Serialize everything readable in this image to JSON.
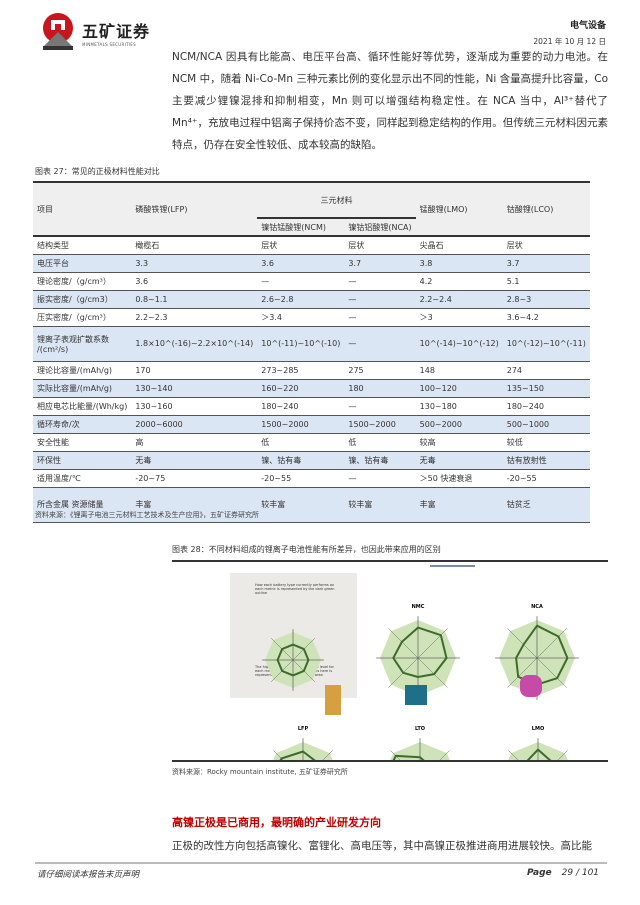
{
  "header": {
    "logo_name": "五矿证券",
    "logo_sub": "MINMETALS SECURITIES",
    "sector": "电气设备",
    "date": "2021 年 10 月 12 日"
  },
  "intro": "NCM/NCA 因具有比能高、电压平台高、循环性能好等优势，逐渐成为重要的动力电池。在 NCM 中，随着 Ni-Co-Mn 三种元素比例的变化显示出不同的性能，Ni 含量高提升比容量，Co 主要减少锂镍混排和抑制相变，Mn 则可以增强结构稳定性。在 NCA 当中，Al³⁺替代了 Mn⁴⁺，充放电过程中铝离子保持价态不变，同样起到稳定结构的作用。但传统三元材料因元素特点，仍存在安全性较低、成本较高的缺陷。",
  "table27": {
    "caption": "图表 27：常见的正极材料性能对比",
    "group_label": "三元材料",
    "headers": [
      "项目",
      "磷酸铁锂(LFP)",
      "镍钴锰酸锂(NCM)",
      "镍钴铝酸锂(NCA)",
      "锰酸锂(LMO)",
      "钴酸锂(LCO)"
    ],
    "rows": [
      [
        "结构类型",
        "橄榄石",
        "层状",
        "层状",
        "尖晶石",
        "层状"
      ],
      [
        "电压平台",
        "3.3",
        "3.6",
        "3.7",
        "3.8",
        "3.7"
      ],
      [
        "理论密度/（g/cm³）",
        "3.6",
        "—",
        "—",
        "4.2",
        "5.1"
      ],
      [
        "振实密度/（g/cm3）",
        "0.8~1.1",
        "2.6~2.8",
        "—",
        "2.2~2.4",
        "2.8~3"
      ],
      [
        "压实密度/（g/cm³）",
        "2.2~2.3",
        "＞3.4",
        "—",
        "＞3",
        "3.6~4.2"
      ],
      [
        "锂离子表观扩散系数 /(cm²/s)",
        "1.8×10^(-16)~2.2×10^(-14)",
        "10^(-11)~10^(-10)",
        "—",
        "10^(-14)~10^(-12)",
        "10^(-12)~10^(-11)"
      ],
      [
        "理论比容量/(mAh/g)",
        "170",
        "273~285",
        "275",
        "148",
        "274"
      ],
      [
        "实际比容量/(mAh/g)",
        "130~140",
        "160~220",
        "180",
        "100~120",
        "135~150"
      ],
      [
        "相应电芯比能量/(Wh/kg)",
        "130~160",
        "180~240",
        "—",
        "130~180",
        "180~240"
      ],
      [
        "循环寿命/次",
        "2000~6000",
        "1500~2000",
        "1500~2000",
        "500~2000",
        "500~1000"
      ],
      [
        "安全性能",
        "高",
        "低",
        "低",
        "较高",
        "较低"
      ],
      [
        "环保性",
        "无毒",
        "镍、钴有毒",
        "镍、钴有毒",
        "无毒",
        "钴有放射性"
      ],
      [
        "适用温度/℃",
        "-20~75",
        "-20~55",
        "—",
        "＞50 快速衰退",
        "-20~55"
      ],
      [
        "所含金属 资源储量",
        "丰富",
        "较丰富",
        "较丰富",
        "丰富",
        "钴贫乏"
      ]
    ],
    "source": "资料来源：《锂离子电池三元材料工艺技术及生产应用》，五矿证券研究所"
  },
  "figure28": {
    "caption": "图表 28：不同材料组成的锂离子电池性能有所差异，也因此带来应用的区别",
    "chart_titles": [
      "NMC",
      "NCA",
      "LFP",
      "LTO",
      "LMO"
    ],
    "legend_top": "How each battery type currently performs on each metric is represented by the dark green outline",
    "legend_bottom": "The highest theoretically achievable level for each metric of the Li-ion chemistries here is represented by the green-shaded area",
    "source": "资料来源：Rocky mountain institute, 五矿证券研究所",
    "colors": {
      "fill": "#cfe3b8",
      "outline": "#3d6b2a"
    }
  },
  "section": {
    "title": "高镍正极是已商用，最明确的产业研发方向",
    "text": "正极的改性方向包括高镍化、富锂化、高电压等，其中高镍正极推进商用进展较快。高比能"
  },
  "footer": {
    "disclaimer": "请仔细阅读本报告末页声明",
    "page_label": "Page",
    "page": "29 / 101"
  }
}
